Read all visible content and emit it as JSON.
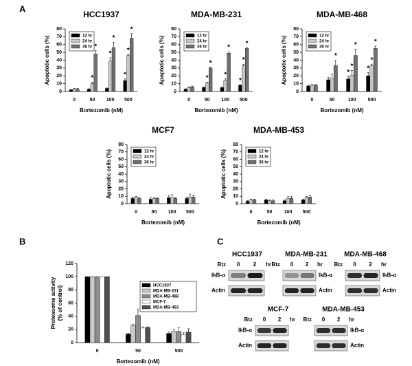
{
  "panel_labels": [
    "A",
    "B",
    "C"
  ],
  "chart_data": [
    {
      "type": "bar",
      "title": "HCC1937",
      "xlabel": "Bortezomib (nM)",
      "ylabel": "Apoptotic cells (%)",
      "categories": [
        "0",
        "50",
        "100",
        "500"
      ],
      "ylim": [
        0,
        80
      ],
      "yticks": [
        0,
        10,
        20,
        30,
        40,
        50,
        60,
        70,
        80
      ],
      "legend": "upper left",
      "series": [
        {
          "name": "12 hr",
          "color": "#000000",
          "values": [
            2,
            3,
            4,
            14
          ],
          "errors": [
            0.5,
            0.5,
            0.5,
            2
          ],
          "significance": [
            null,
            null,
            null,
            "*"
          ]
        },
        {
          "name": "24 hr",
          "color": "#c8c8c8",
          "values": [
            3,
            10,
            39,
            46
          ],
          "errors": [
            1,
            2,
            4,
            1
          ],
          "significance": [
            null,
            "*",
            "*",
            "*"
          ]
        },
        {
          "name": "36 hr",
          "color": "#707070",
          "values": [
            3,
            48,
            56,
            68
          ],
          "errors": [
            1,
            4,
            7,
            6
          ],
          "significance": [
            null,
            "*",
            "*",
            "*"
          ]
        }
      ]
    },
    {
      "type": "bar",
      "title": "MDA-MB-231",
      "xlabel": "Bortezomib (nM)",
      "ylabel": "Apoptotic cells (%)",
      "categories": [
        "0",
        "50",
        "100",
        "500"
      ],
      "ylim": [
        0,
        80
      ],
      "yticks": [
        0,
        10,
        20,
        30,
        40,
        50,
        60,
        70,
        80
      ],
      "legend": "upper left",
      "series": [
        {
          "name": "12 hr",
          "color": "#000000",
          "values": [
            3,
            5,
            5,
            8
          ],
          "errors": [
            0.5,
            1,
            0.5,
            0.5
          ],
          "significance": [
            null,
            null,
            null,
            "*"
          ]
        },
        {
          "name": "24 hr",
          "color": "#c8c8c8",
          "values": [
            5,
            11,
            14,
            33
          ],
          "errors": [
            1,
            1,
            2,
            2
          ],
          "significance": [
            null,
            "*",
            "*",
            "*"
          ]
        },
        {
          "name": "36 hr",
          "color": "#707070",
          "values": [
            6,
            30,
            49,
            55
          ],
          "errors": [
            1,
            1,
            2,
            1
          ],
          "significance": [
            null,
            "*",
            "*",
            "*"
          ]
        }
      ]
    },
    {
      "type": "bar",
      "title": "MDA-MB-468",
      "xlabel": "Bortezomib (nM)",
      "ylabel": "Apoptotic cells (%)",
      "categories": [
        "0",
        "50",
        "100",
        "500"
      ],
      "ylim": [
        0,
        80
      ],
      "yticks": [
        0,
        10,
        20,
        30,
        40,
        50,
        60,
        70,
        80
      ],
      "legend": "upper left",
      "series": [
        {
          "name": "12 hr",
          "color": "#000000",
          "values": [
            7,
            15,
            16,
            20
          ],
          "errors": [
            1,
            3,
            3,
            4
          ],
          "significance": [
            null,
            null,
            "*",
            "*"
          ]
        },
        {
          "name": "24 hr",
          "color": "#c8c8c8",
          "values": [
            8,
            17,
            21,
            33
          ],
          "errors": [
            1,
            5,
            6,
            2
          ],
          "significance": [
            null,
            null,
            "*",
            "*"
          ]
        },
        {
          "name": "36 hr",
          "color": "#707070",
          "values": [
            8,
            33,
            46,
            55
          ],
          "errors": [
            1,
            7,
            8,
            3
          ],
          "significance": [
            null,
            "*",
            "*",
            "*"
          ]
        }
      ]
    },
    {
      "type": "bar",
      "title": "MCF7",
      "xlabel": "Bortezomib (nM)",
      "ylabel": "Apoptotic cells (%)",
      "categories": [
        "0",
        "50",
        "100",
        "500"
      ],
      "ylim": [
        0,
        80
      ],
      "yticks": [
        0,
        10,
        20,
        30,
        40,
        50,
        60,
        70,
        80
      ],
      "legend": "upper left",
      "series": [
        {
          "name": "12 hr",
          "color": "#000000",
          "values": [
            7,
            6,
            8,
            7
          ],
          "errors": [
            2,
            2,
            3,
            2
          ],
          "significance": [
            null,
            null,
            null,
            null
          ]
        },
        {
          "name": "24 hr",
          "color": "#c8c8c8",
          "values": [
            9,
            7,
            8,
            9
          ],
          "errors": [
            1,
            1,
            4,
            4
          ],
          "significance": [
            null,
            null,
            null,
            null
          ]
        },
        {
          "name": "36 hr",
          "color": "#707070",
          "values": [
            7,
            7,
            7,
            9
          ],
          "errors": [
            2,
            1,
            1,
            2
          ],
          "significance": [
            null,
            null,
            null,
            null
          ]
        }
      ]
    },
    {
      "type": "bar",
      "title": "MDA-MB-453",
      "xlabel": "Bortezomib (nM)",
      "ylabel": "Apoptotic cells (%)",
      "categories": [
        "0",
        "50",
        "100",
        "500"
      ],
      "ylim": [
        0,
        80
      ],
      "yticks": [
        0,
        10,
        20,
        30,
        40,
        50,
        60,
        70,
        80
      ],
      "legend": "upper left",
      "series": [
        {
          "name": "12 hr",
          "color": "#000000",
          "values": [
            3,
            5,
            4,
            5
          ],
          "errors": [
            1,
            1,
            1,
            1
          ],
          "significance": [
            null,
            null,
            null,
            null
          ]
        },
        {
          "name": "24 hr",
          "color": "#c8c8c8",
          "values": [
            5,
            4,
            7,
            8
          ],
          "errors": [
            1,
            1,
            3,
            2
          ],
          "significance": [
            null,
            null,
            null,
            null
          ]
        },
        {
          "name": "36 hr",
          "color": "#707070",
          "values": [
            5,
            4,
            7,
            9
          ],
          "errors": [
            1,
            1,
            3,
            2
          ],
          "significance": [
            null,
            null,
            null,
            null
          ]
        }
      ]
    },
    {
      "type": "bar",
      "xlabel": "Bortezomib (nM)",
      "ylabel_lines": [
        "Proteasome activity",
        "(% of control)"
      ],
      "categories": [
        "0",
        "50",
        "500"
      ],
      "ylim": [
        0,
        120
      ],
      "yticks": [
        0,
        20,
        40,
        60,
        80,
        100,
        120
      ],
      "legend": "upper right",
      "series": [
        {
          "name": "HCC1937",
          "color": "#000000",
          "values": [
            100,
            13,
            14
          ],
          "errors": [
            0,
            1,
            2
          ]
        },
        {
          "name": "MDA-MB-231",
          "color": "#c8c8c8",
          "values": [
            100,
            26,
            17
          ],
          "errors": [
            0,
            2,
            3
          ]
        },
        {
          "name": "MDA-MB-468",
          "color": "#8c8c8c",
          "values": [
            100,
            41,
            17
          ],
          "errors": [
            0,
            10,
            6
          ]
        },
        {
          "name": "MCF-7",
          "color": "#ffffff",
          "values": [
            100,
            22,
            12
          ],
          "errors": [
            0,
            2,
            3
          ]
        },
        {
          "name": "MDA-MB-453",
          "color": "#505050",
          "values": [
            100,
            23,
            16
          ],
          "errors": [
            0,
            1,
            5
          ]
        }
      ]
    }
  ],
  "blots": [
    {
      "title": "HCC1937",
      "treatment": "Btz",
      "times": [
        "0",
        "2"
      ],
      "unit": "hr",
      "rows": [
        "IkB-α",
        "Actin"
      ]
    },
    {
      "title": "MDA-MB-231",
      "treatment": "Btz",
      "times": [
        "0",
        "2"
      ],
      "unit": "hr",
      "rows": [
        "IkB-α",
        "Actin"
      ]
    },
    {
      "title": "MDA-MB-468",
      "treatment": "Btz",
      "times": [
        "0",
        "2"
      ],
      "unit": "hr",
      "rows": [
        "IkB-α",
        "Actin"
      ]
    },
    {
      "title": "MCF-7",
      "treatment": "Btz",
      "times": [
        "0",
        "2"
      ],
      "unit": "hr",
      "rows": [
        "IkB-α",
        "Actin"
      ]
    },
    {
      "title": "MDA-MB-453",
      "treatment": "Btz",
      "times": [
        "0",
        "2"
      ],
      "unit": "hr",
      "rows": [
        "IkB-α",
        "Actin"
      ]
    }
  ]
}
